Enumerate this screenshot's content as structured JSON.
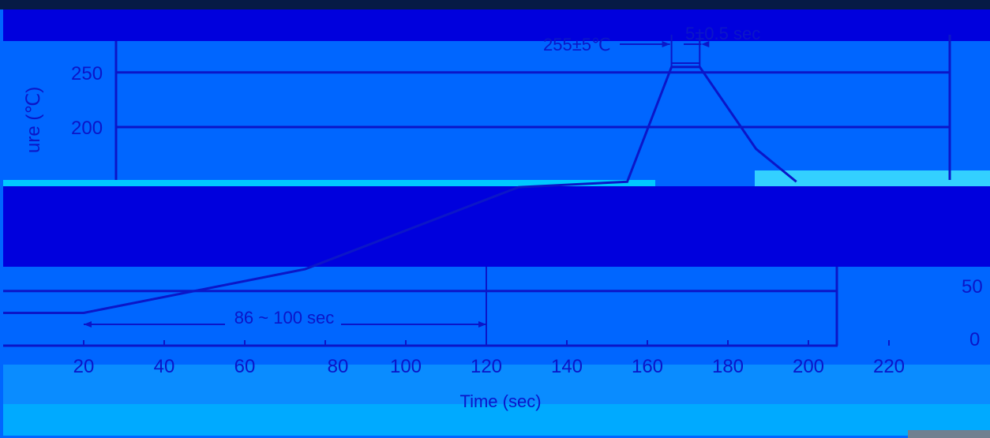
{
  "chart_data": {
    "type": "line",
    "xlabel": "Time (sec)",
    "ylabel": "Temperature (℃)",
    "ylabel_visible": "ure (℃)",
    "x_ticks": [
      "20",
      "40",
      "60",
      "80",
      "100",
      "120",
      "140",
      "160",
      "180",
      "200",
      "220"
    ],
    "y_ticks_left": [
      "250",
      "200"
    ],
    "y_ticks_right": [
      "50",
      "0"
    ],
    "xlim": [
      0,
      230
    ],
    "ylim": [
      0,
      275
    ],
    "grid": true,
    "series": [
      {
        "x": [
          0,
          20,
          75,
          128,
          155,
          166,
          173,
          187,
          197
        ],
        "y": [
          30,
          30,
          70,
          145,
          150,
          255,
          255,
          180,
          150
        ]
      }
    ],
    "annotations": {
      "preheat_duration": "86 ~ 100 sec",
      "peak_temp": "255±5℃",
      "peak_duration": "5±0.5 sec"
    }
  },
  "colors": {
    "background": "#0066ff",
    "ink": "#0b16c8",
    "band_dark": "#0000dd",
    "band_light": "#00c8ff"
  }
}
